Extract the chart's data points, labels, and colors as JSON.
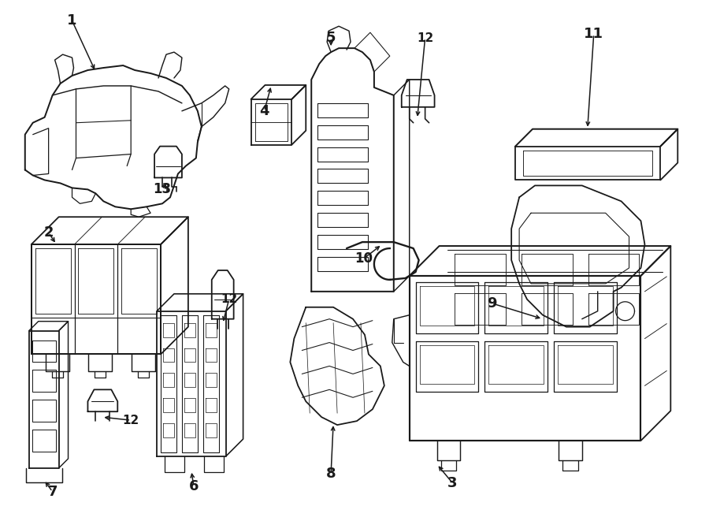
{
  "bg_color": "#ffffff",
  "line_color": "#1a1a1a",
  "lw": 1.3,
  "figsize": [
    9.0,
    6.61
  ],
  "dpi": 100,
  "labels": {
    "1": [
      90,
      28,
      "1"
    ],
    "2": [
      60,
      300,
      "2"
    ],
    "3": [
      575,
      610,
      "3"
    ],
    "4": [
      330,
      155,
      "4"
    ],
    "5": [
      420,
      50,
      "5"
    ],
    "6": [
      245,
      610,
      "6"
    ],
    "7": [
      65,
      620,
      "7"
    ],
    "8": [
      420,
      600,
      "8"
    ],
    "9": [
      620,
      390,
      "9"
    ],
    "10": [
      460,
      330,
      "10"
    ],
    "11": [
      750,
      50,
      "11"
    ],
    "12a": [
      540,
      50,
      "12"
    ],
    "12b": [
      290,
      370,
      "12"
    ],
    "12c": [
      165,
      530,
      "12"
    ],
    "13": [
      205,
      230,
      "13"
    ]
  }
}
